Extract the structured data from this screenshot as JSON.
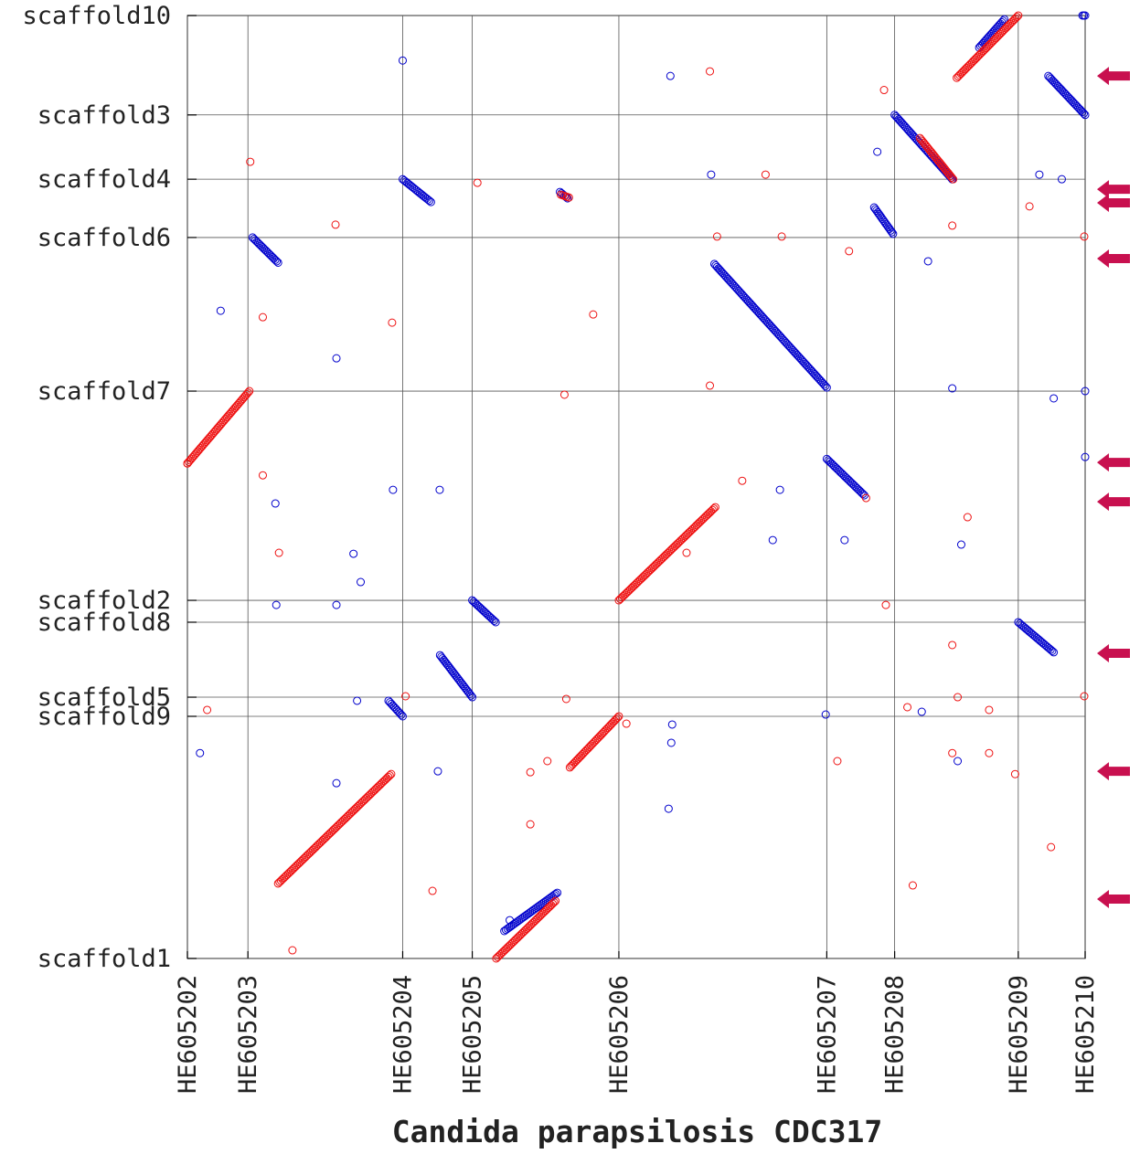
{
  "chart_data": {
    "type": "scatter",
    "title": "",
    "xlabel": "Candida parapsilosis CDC317",
    "ylabel": "",
    "x_ticks": [
      {
        "label": "HE605202",
        "value": 0.0
      },
      {
        "label": "HE605203",
        "value": 0.0674
      },
      {
        "label": "HE605204",
        "value": 0.2398
      },
      {
        "label": "HE605205",
        "value": 0.3173
      },
      {
        "label": "HE605206",
        "value": 0.4806
      },
      {
        "label": "HE605207",
        "value": 0.7122
      },
      {
        "label": "HE605208",
        "value": 0.7878
      },
      {
        "label": "HE605209",
        "value": 0.9255
      },
      {
        "label": "HE605210",
        "value": 1.0
      }
    ],
    "y_ticks": [
      {
        "label": "scaffold10",
        "value": 1.0
      },
      {
        "label": "scaffold3",
        "value": 0.8946
      },
      {
        "label": "scaffold4",
        "value": 0.8264
      },
      {
        "label": "scaffold6",
        "value": 0.7646
      },
      {
        "label": "scaffold7",
        "value": 0.6017
      },
      {
        "label": "scaffold2",
        "value": 0.3798
      },
      {
        "label": "scaffold8",
        "value": 0.3566
      },
      {
        "label": "scaffold5",
        "value": 0.2771
      },
      {
        "label": "scaffold9",
        "value": 0.2568
      },
      {
        "label": "scaffold1",
        "value": 0.0
      }
    ],
    "xlim": [
      0,
      1
    ],
    "ylim": [
      0,
      1
    ],
    "grid": true,
    "marker": "open-circle",
    "series": [
      {
        "color": "#0000cc",
        "segments": [
          [
            [
              0.0726,
              0.7646
            ],
            [
              0.101,
              0.7379
            ]
          ],
          [
            [
              0.2398,
              0.8264
            ],
            [
              0.2713,
              0.8022
            ]
          ],
          [
            [
              0.415,
              0.8129
            ],
            [
              0.4235,
              0.8061
            ]
          ],
          [
            [
              0.587,
              0.7365
            ],
            [
              0.7122,
              0.6055
            ]
          ],
          [
            [
              0.7878,
              0.8946
            ],
            [
              0.852,
              0.8264
            ]
          ],
          [
            [
              0.765,
              0.7965
            ],
            [
              0.786,
              0.7685
            ]
          ],
          [
            [
              0.959,
              0.9359
            ],
            [
              1.0,
              0.8946
            ]
          ],
          [
            [
              0.7122,
              0.5298
            ],
            [
              0.754,
              0.4912
            ]
          ],
          [
            [
              0.3173,
              0.3798
            ],
            [
              0.3434,
              0.3566
            ]
          ],
          [
            [
              0.2814,
              0.3216
            ],
            [
              0.3173,
              0.2771
            ]
          ],
          [
            [
              0.224,
              0.2733
            ],
            [
              0.2398,
              0.2568
            ]
          ],
          [
            [
              0.9255,
              0.3566
            ],
            [
              0.965,
              0.3247
            ]
          ],
          [
            [
              0.353,
              0.0291
            ],
            [
              0.412,
              0.0697
            ]
          ],
          [
            [
              0.882,
              0.966
            ],
            [
              0.91,
              0.996
            ]
          ],
          [
            [
              0.997,
              1.0
            ],
            [
              1.0,
              1.0
            ]
          ]
        ],
        "points": [
          [
            0.2398,
            0.9523
          ],
          [
            0.538,
            0.9359
          ],
          [
            0.5834,
            0.8313
          ],
          [
            0.7685,
            0.8555
          ],
          [
            0.949,
            0.8313
          ],
          [
            0.825,
            0.7394
          ],
          [
            0.037,
            0.6869
          ],
          [
            0.166,
            0.6365
          ],
          [
            0.098,
            0.4825
          ],
          [
            0.229,
            0.497
          ],
          [
            0.281,
            0.497
          ],
          [
            0.66,
            0.497
          ],
          [
            0.652,
            0.4437
          ],
          [
            0.732,
            0.4437
          ],
          [
            0.852,
            0.8264
          ],
          [
            0.852,
            0.6046
          ],
          [
            0.862,
            0.4389
          ],
          [
            0.185,
            0.4292
          ],
          [
            0.193,
            0.3992
          ],
          [
            0.099,
            0.3749
          ],
          [
            0.166,
            0.3749
          ],
          [
            0.189,
            0.2733
          ],
          [
            0.711,
            0.2587
          ],
          [
            0.818,
            0.2616
          ],
          [
            0.014,
            0.2178
          ],
          [
            0.54,
            0.2481
          ],
          [
            0.539,
            0.2287
          ],
          [
            0.166,
            0.1859
          ],
          [
            0.279,
            0.1985
          ],
          [
            0.536,
            0.1588
          ],
          [
            0.858,
            0.2093
          ],
          [
            0.359,
            0.0406
          ],
          [
            0.974,
            0.8264
          ],
          [
            0.965,
            0.594
          ],
          [
            1.0,
            0.6017
          ],
          [
            1.0,
            0.5318
          ]
        ]
      },
      {
        "color": "#ee1111",
        "segments": [
          [
            [
              0.0,
              0.525
            ],
            [
              0.069,
              0.6017
            ]
          ],
          [
            [
              0.4806,
              0.3798
            ],
            [
              0.588,
              0.4786
            ]
          ],
          [
            [
              0.426,
              0.2026
            ],
            [
              0.4806,
              0.2568
            ]
          ],
          [
            [
              0.101,
              0.0795
            ],
            [
              0.227,
              0.1956
            ]
          ],
          [
            [
              0.344,
              0.0
            ],
            [
              0.41,
              0.061
            ]
          ],
          [
            [
              0.857,
              0.9339
            ],
            [
              0.9255,
              1.0
            ]
          ],
          [
            [
              0.816,
              0.87
            ],
            [
              0.853,
              0.8264
            ]
          ],
          [
            [
              0.416,
              0.81
            ],
            [
              0.425,
              0.807
            ]
          ]
        ],
        "points": [
          [
            0.582,
            0.9408
          ],
          [
            0.07,
            0.8449
          ],
          [
            0.644,
            0.8313
          ],
          [
            0.323,
            0.8226
          ],
          [
            0.165,
            0.7782
          ],
          [
            0.59,
            0.7656
          ],
          [
            0.662,
            0.7656
          ],
          [
            0.737,
            0.7501
          ],
          [
            0.852,
            0.7772
          ],
          [
            0.938,
            0.7976
          ],
          [
            0.999,
            0.7656
          ],
          [
            0.084,
            0.6801
          ],
          [
            0.228,
            0.6743
          ],
          [
            0.452,
            0.683
          ],
          [
            0.582,
            0.6075
          ],
          [
            0.42,
            0.5979
          ],
          [
            0.084,
            0.5124
          ],
          [
            0.618,
            0.5066
          ],
          [
            0.756,
            0.4883
          ],
          [
            0.869,
            0.468
          ],
          [
            0.102,
            0.4302
          ],
          [
            0.556,
            0.4302
          ],
          [
            0.778,
            0.3749
          ],
          [
            0.852,
            0.3324
          ],
          [
            0.243,
            0.2781
          ],
          [
            0.422,
            0.2752
          ],
          [
            0.858,
            0.2771
          ],
          [
            0.999,
            0.2781
          ],
          [
            0.022,
            0.2636
          ],
          [
            0.802,
            0.2665
          ],
          [
            0.893,
            0.2636
          ],
          [
            0.489,
            0.249
          ],
          [
            0.401,
            0.2093
          ],
          [
            0.382,
            0.1975
          ],
          [
            0.724,
            0.2093
          ],
          [
            0.852,
            0.2178
          ],
          [
            0.893,
            0.2178
          ],
          [
            0.922,
            0.1955
          ],
          [
            0.382,
            0.1423
          ],
          [
            0.273,
            0.0717
          ],
          [
            0.808,
            0.0775
          ],
          [
            0.962,
            0.1181
          ],
          [
            0.117,
            0.0087
          ],
          [
            0.776,
            0.921
          ],
          [
            0.0,
            0.525
          ]
        ]
      }
    ],
    "arrows": [
      {
        "y": 0.9359
      },
      {
        "y": 0.8158
      },
      {
        "y": 0.8013
      },
      {
        "y": 0.7423
      },
      {
        "y": 0.526
      },
      {
        "y": 0.4844
      },
      {
        "y": 0.3237
      },
      {
        "y": 0.1985
      },
      {
        "y": 0.063
      }
    ],
    "arrow_color": "#c8104f",
    "grid_color": "#555555"
  }
}
